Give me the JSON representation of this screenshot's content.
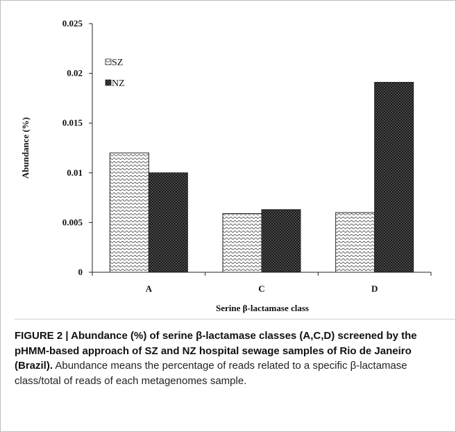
{
  "chart_data": {
    "type": "bar",
    "categories": [
      "A",
      "C",
      "D"
    ],
    "series": [
      {
        "name": "SZ",
        "values": [
          0.012,
          0.0059,
          0.006
        ],
        "pattern": "wave",
        "color": "#ffffff"
      },
      {
        "name": "NZ",
        "values": [
          0.01,
          0.0063,
          0.0191
        ],
        "pattern": "dots",
        "color": "#1a1a1a"
      }
    ],
    "xlabel": "Serine β-lactamase class",
    "ylabel": "Abundance (%)",
    "ylim": [
      0,
      0.025
    ],
    "yticks": [
      "0",
      "0.005",
      "0.01",
      "0.015",
      "0.02",
      "0.025"
    ],
    "ytick_values": [
      0,
      0.005,
      0.01,
      0.015,
      0.02,
      0.025
    ],
    "legend_position": "top-left",
    "grid": false
  },
  "caption": {
    "bold": "FIGURE 2 | Abundance (%) of serine β-lactamase classes (A,C,D) screened by the pHMM-based approach of SZ and NZ hospital sewage samples of Rio de Janeiro (Brazil).",
    "text": " Abundance means the percentage of reads related to a specific β-lactamase class/total of reads of each metagenomes sample."
  }
}
